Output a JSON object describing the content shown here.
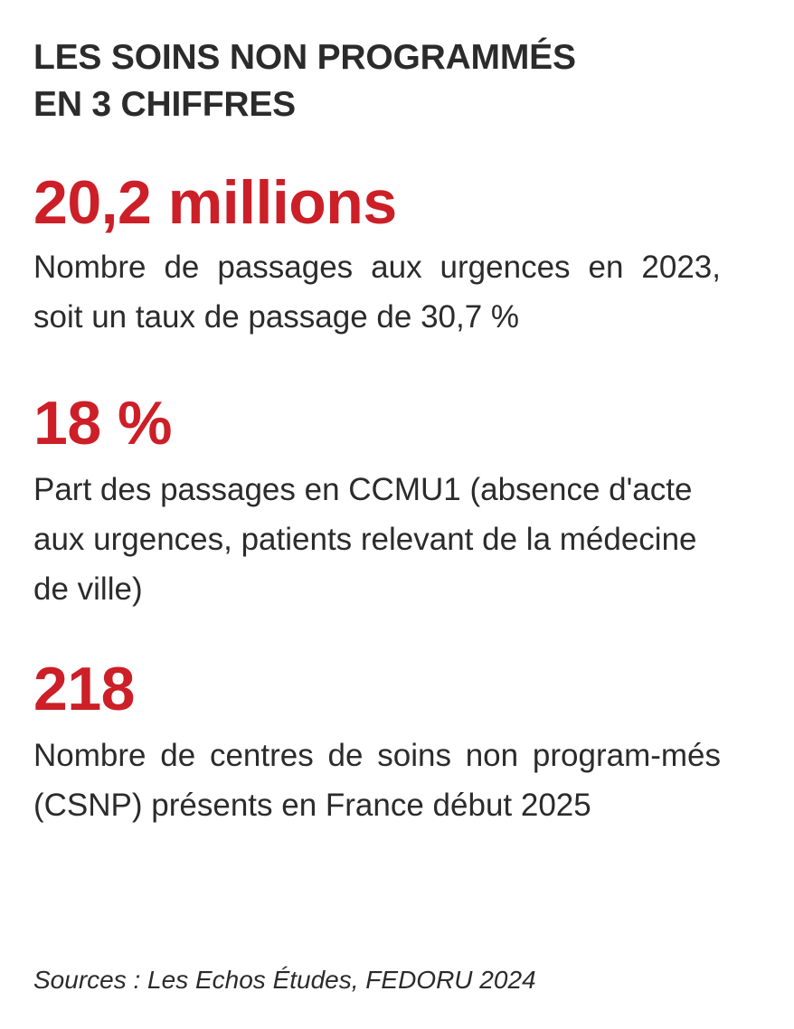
{
  "title": {
    "line1": "LES SOINS NON PROGRAMMÉS",
    "line2": "EN 3 CHIFFRES"
  },
  "stats": [
    {
      "value": "20,2 millions",
      "description": "Nombre de passages aux urgences en 2023, soit un taux de passage de 30,7 %"
    },
    {
      "value": "18 %",
      "description": "Part des passages en CCMU1 (absence d'acte aux urgences, patients relevant de la médecine de ville)"
    },
    {
      "value": "218",
      "description": "Nombre de centres de soins non program-més (CSNP) présents en France début 2025"
    }
  ],
  "sources": "Sources : Les Echos Études, FEDORU 2024",
  "colors": {
    "accent": "#cc1f27",
    "text": "#2b2b2b",
    "background": "#ffffff"
  }
}
